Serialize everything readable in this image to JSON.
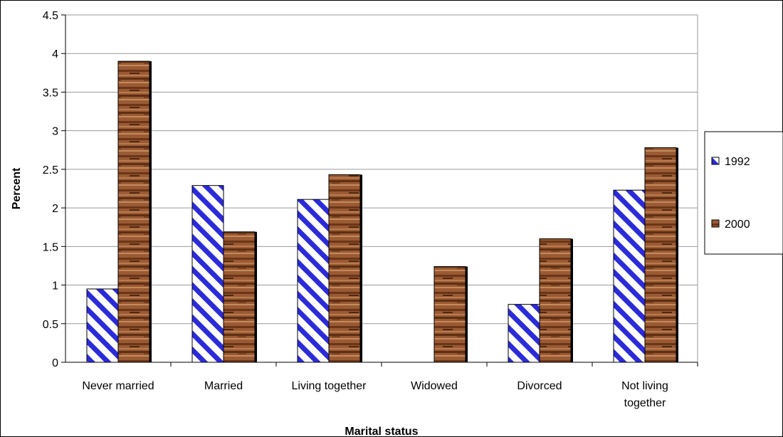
{
  "chart_data": {
    "type": "bar",
    "xlabel": "Marital status",
    "ylabel": "Percent",
    "ylim": [
      0,
      4.5
    ],
    "yticks": [
      0,
      0.5,
      1,
      1.5,
      2,
      2.5,
      3,
      3.5,
      4,
      4.5
    ],
    "grid": true,
    "legend_position": "right",
    "categories": [
      [
        "Never married"
      ],
      [
        "Married"
      ],
      [
        "Living together"
      ],
      [
        "Widowed"
      ],
      [
        "Divorced"
      ],
      [
        "Not living",
        "together"
      ]
    ],
    "series": [
      {
        "name": "1992",
        "pattern": "blue-diagonal-hatch",
        "color": "#2b2bd9",
        "values": [
          0.95,
          2.29,
          2.11,
          0,
          0.75,
          2.23
        ]
      },
      {
        "name": "2000",
        "pattern": "brown-wood-grain",
        "color": "#8b4a25",
        "values": [
          3.9,
          1.69,
          2.43,
          1.24,
          1.6,
          2.78
        ]
      }
    ]
  }
}
